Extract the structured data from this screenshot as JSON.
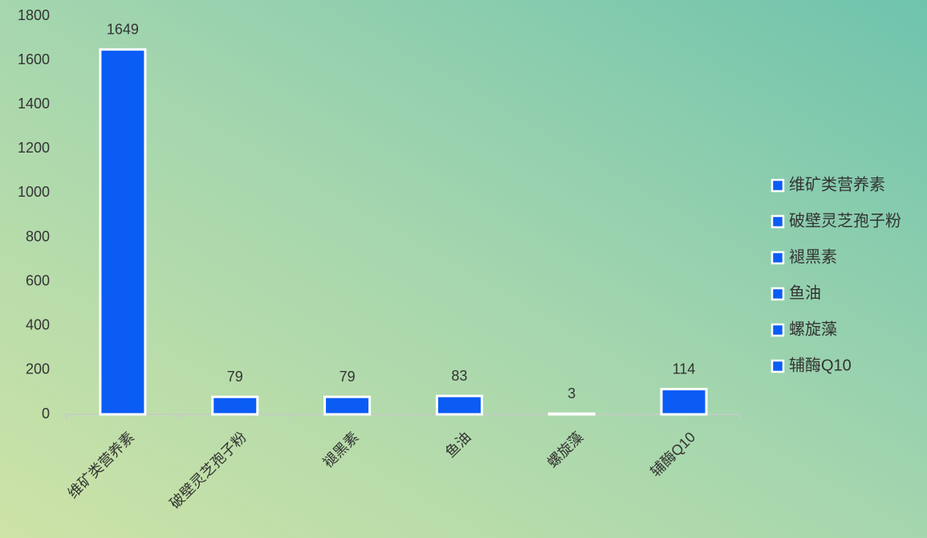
{
  "chart_data": {
    "type": "bar",
    "categories": [
      "维矿类营养素",
      "破壁灵芝孢子粉",
      "褪黑素",
      "鱼油",
      "螺旋藻",
      "辅酶Q10"
    ],
    "values": [
      1649,
      79,
      79,
      83,
      3,
      114
    ],
    "color": "#0a5cf5",
    "ylim": [
      0,
      1800
    ],
    "yticks": [
      0,
      200,
      400,
      600,
      800,
      1000,
      1200,
      1400,
      1600,
      1800
    ],
    "grid": false,
    "legend": "right"
  }
}
